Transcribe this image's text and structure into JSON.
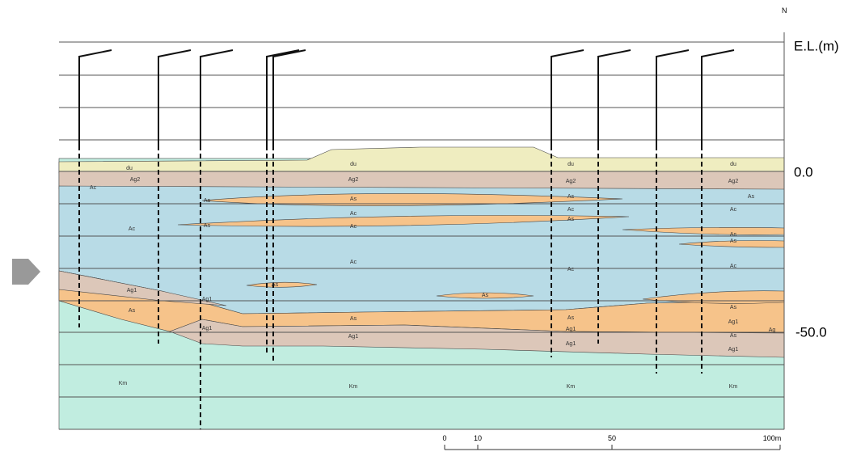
{
  "north": "N",
  "axis": {
    "unit": "E.L.(m)",
    "levels": [
      "0.0",
      "-50.0"
    ]
  },
  "layer_labels": [
    "du",
    "du",
    "du",
    "du",
    "Ag2",
    "Ag2",
    "Ag2",
    "Ag2",
    "Ac",
    "As",
    "As",
    "As",
    "As",
    "Ac",
    "Ac",
    "Ac",
    "Ac",
    "Ac",
    "As",
    "As",
    "As",
    "As",
    "Ac",
    "Ac",
    "Ac",
    "As",
    "Ag1",
    "Ag1",
    "As",
    "As",
    "As",
    "As",
    "As",
    "Ag1",
    "Ag1",
    "Ag1",
    "Ag1",
    "Ag1",
    "Ag1",
    "As",
    "Ag",
    "Km",
    "Km",
    "Km",
    "Km"
  ],
  "scale": [
    "0",
    "10",
    "50",
    "100m"
  ]
}
